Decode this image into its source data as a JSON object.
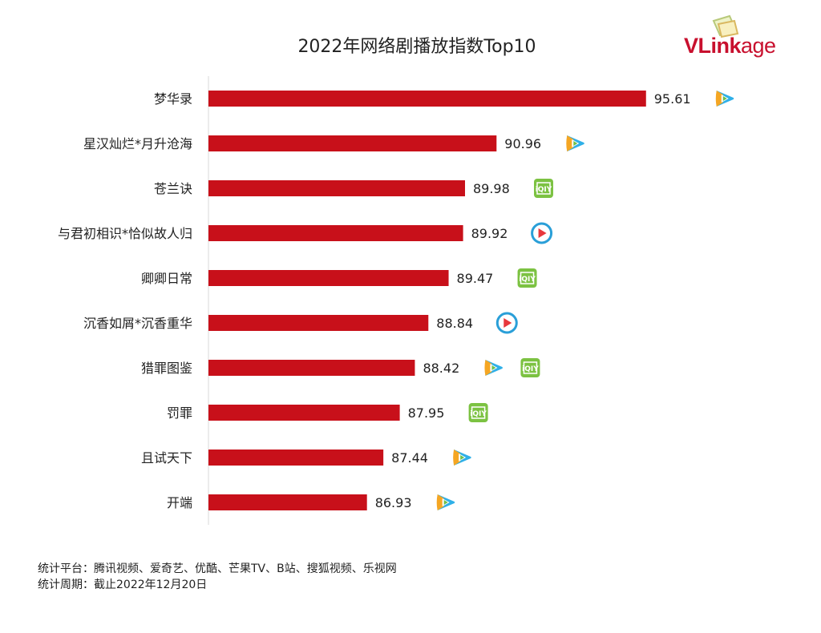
{
  "logo": {
    "text_bold": "VLink",
    "text_light": "age"
  },
  "chart_data": {
    "type": "bar",
    "orientation": "horizontal",
    "title": "2022年网络剧播放指数Top10",
    "categories": [
      "梦华录",
      "星汉灿烂*月升沧海",
      "苍兰诀",
      "与君初相识*恰似故人归",
      "卿卿日常",
      "沉香如屑*沉香重华",
      "猎罪图鉴",
      "罚罪",
      "且试天下",
      "开端"
    ],
    "values": [
      95.61,
      90.96,
      89.98,
      89.92,
      89.47,
      88.84,
      88.42,
      87.95,
      87.44,
      86.93
    ],
    "platforms": [
      [
        "tencent"
      ],
      [
        "tencent"
      ],
      [
        "iqiyi"
      ],
      [
        "youku"
      ],
      [
        "iqiyi"
      ],
      [
        "youku"
      ],
      [
        "tencent",
        "iqiyi"
      ],
      [
        "iqiyi"
      ],
      [
        "tencent"
      ],
      [
        "tencent"
      ]
    ],
    "xlim": [
      82,
      97
    ],
    "grid": false,
    "bar_color": "#c8101a"
  },
  "footer": {
    "line1": "统计平台：腾讯视频、爱奇艺、优酷、芒果TV、B站、搜狐视频、乐视网",
    "line2": "统计周期：截止2022年12月20日"
  }
}
